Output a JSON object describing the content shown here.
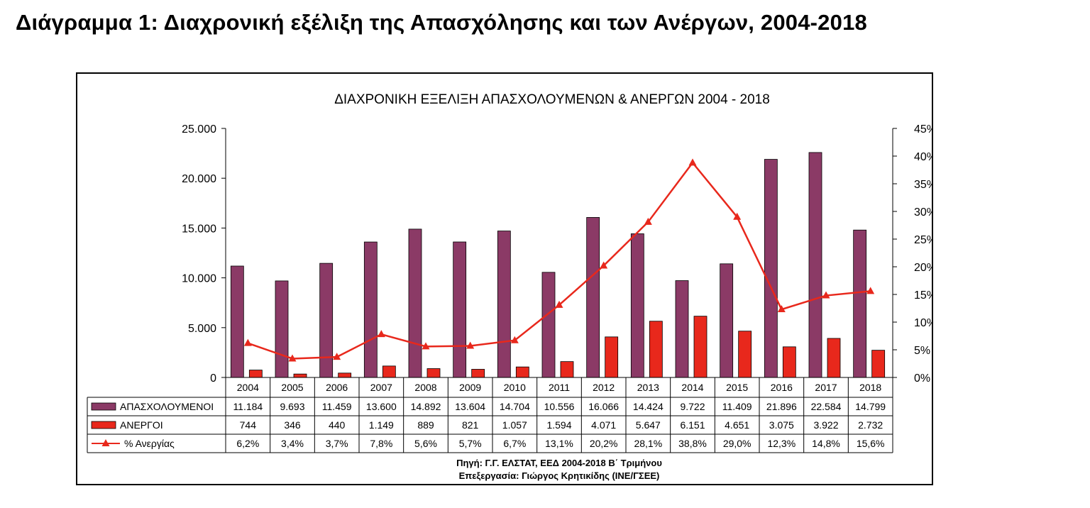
{
  "page": {
    "title": "Διάγραμμα 1: Διαχρονική εξέλιξη της Απασχόλησης και των Ανέργων, 2004-2018"
  },
  "chart_data": {
    "type": "bar",
    "title": "ΔΙΑΧΡΟΝΙΚΗ ΕΞΕΛΙΞΗ ΑΠΑΣΧΟΛΟΥΜΕΝΩΝ & ΑΝΕΡΓΩΝ 2004 - 2018",
    "categories": [
      "2004",
      "2005",
      "2006",
      "2007",
      "2008",
      "2009",
      "2010",
      "2011",
      "2012",
      "2013",
      "2014",
      "2015",
      "2016",
      "2017",
      "2018"
    ],
    "ylim": [
      0,
      25000
    ],
    "y2lim": [
      0,
      45
    ],
    "yticks": [
      "0",
      "5.000",
      "10.000",
      "15.000",
      "20.000",
      "25.000"
    ],
    "y2ticks": [
      "0%",
      "5%",
      "10%",
      "15%",
      "20%",
      "25%",
      "30%",
      "35%",
      "40%",
      "45%"
    ],
    "grid": false,
    "legend": "table-left",
    "series": [
      {
        "name": "ΑΠΑΣΧΟΛΟΥΜΕΝΟΙ",
        "type": "bar",
        "axis": "left",
        "color": "#8b3a66",
        "values": [
          11184,
          9693,
          11459,
          13600,
          14892,
          13604,
          14704,
          10556,
          16066,
          14424,
          9722,
          11409,
          21896,
          22584,
          14799
        ],
        "labels": [
          "11.184",
          "9.693",
          "11.459",
          "13.600",
          "14.892",
          "13.604",
          "14.704",
          "10.556",
          "16.066",
          "14.424",
          "9.722",
          "11.409",
          "21.896",
          "22.584",
          "14.799"
        ]
      },
      {
        "name": "ΑΝΕΡΓΟΙ",
        "type": "bar",
        "axis": "left",
        "color": "#e8281c",
        "values": [
          744,
          346,
          440,
          1149,
          889,
          821,
          1057,
          1594,
          4071,
          5647,
          6151,
          4651,
          3075,
          3922,
          2732
        ],
        "labels": [
          "744",
          "346",
          "440",
          "1.149",
          "889",
          "821",
          "1.057",
          "1.594",
          "4.071",
          "5.647",
          "6.151",
          "4.651",
          "3.075",
          "3.922",
          "2.732"
        ]
      },
      {
        "name": "% Ανεργίας",
        "type": "line",
        "axis": "right",
        "color": "#e8281c",
        "values": [
          6.2,
          3.4,
          3.7,
          7.8,
          5.6,
          5.7,
          6.7,
          13.1,
          20.2,
          28.1,
          38.8,
          29.0,
          12.3,
          14.8,
          15.6
        ],
        "labels": [
          "6,2%",
          "3,4%",
          "3,7%",
          "7,8%",
          "5,6%",
          "5,7%",
          "6,7%",
          "13,1%",
          "20,2%",
          "28,1%",
          "38,8%",
          "29,0%",
          "12,3%",
          "14,8%",
          "15,6%"
        ]
      }
    ],
    "source": "Πηγή: Γ.Γ. ΕΛΣΤΑΤ, ΕΕΔ 2004-2018 Β΄ Τριμήνου",
    "processing": "Επεξεργασία: Γιώργος Κρητικίδης (ΙΝΕ/ΓΣΕΕ)"
  }
}
